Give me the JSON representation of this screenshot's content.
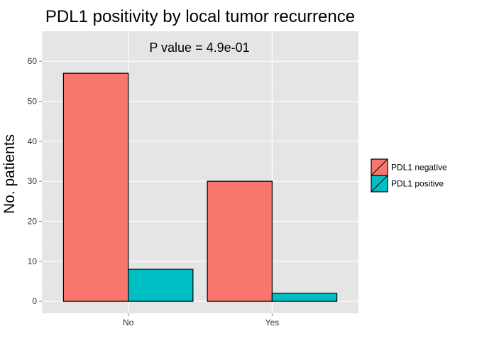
{
  "chart_data": {
    "type": "bar",
    "title": "PDL1 positivity by local tumor recurrence",
    "xlabel": "",
    "ylabel": "No. patients",
    "annotation": "P value = 4.9e-01",
    "categories": [
      "No",
      "Yes"
    ],
    "series": [
      {
        "name": "PDL1 negative",
        "values": [
          57,
          30
        ],
        "color": "#F8766D"
      },
      {
        "name": "PDL1 positive",
        "values": [
          8,
          2
        ],
        "color": "#00BFC4"
      }
    ],
    "ylim": [
      -3,
      67.5
    ],
    "yticks": [
      0,
      10,
      20,
      30,
      40,
      50,
      60
    ],
    "grid": true,
    "legend_position": "right",
    "panel_color": "#E5E5E5",
    "grid_color": "#FFFFFF"
  }
}
